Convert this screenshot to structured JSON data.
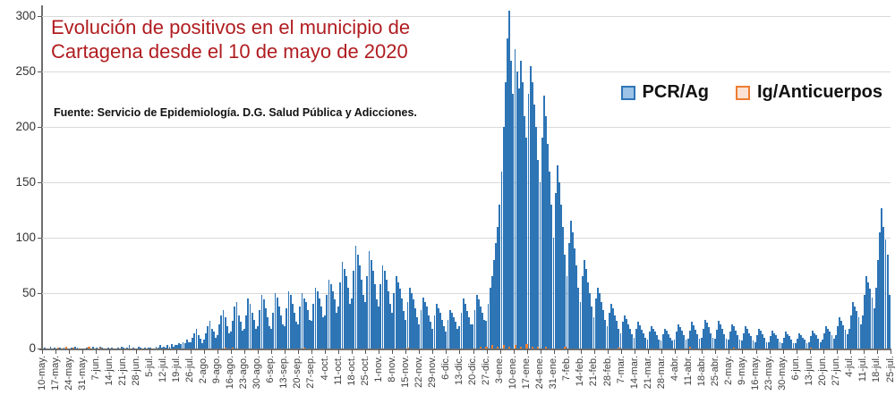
{
  "header": {
    "title": "Evolución de positivos en el municipio de Cartagena desde el 10 de mayo de 2020",
    "source": "Fuente: Servicio de Epidemiología. D.G. Salud Pública y Adicciones."
  },
  "legend": {
    "items": [
      {
        "label": "PCR/Ag",
        "fill": "#9DC3E6",
        "border": "#2E75B6"
      },
      {
        "label": "Ig/Anticuerpos",
        "fill": "#FBE2D5",
        "border": "#ED7D31"
      }
    ]
  },
  "colors": {
    "title": "#B01C20",
    "bar_blue": "#2E75B6",
    "bar_orange": "#ED7D31",
    "gridline": "#D9D9D9",
    "axis": "#6E6E6E",
    "tick_label": "#3F3F3F"
  },
  "chart_data": {
    "type": "bar",
    "title": "Evolución de positivos en el municipio de Cartagena desde el 10 de mayo de 2020",
    "xlabel": "",
    "ylabel": "",
    "ylim": [
      0,
      310
    ],
    "grid": true,
    "legend_position": "top-right",
    "y_ticks": [
      0,
      50,
      100,
      150,
      200,
      250,
      300
    ],
    "x_tick_labels": [
      "10-may.",
      "17-may.",
      "24-may.",
      "31-may.",
      "7-jun.",
      "14-jun.",
      "21-jun.",
      "28-jun.",
      "5-jul.",
      "12-jul.",
      "19-jul.",
      "26-jul.",
      "2-ago.",
      "9-ago.",
      "16-ago.",
      "23-ago.",
      "30-ago.",
      "6-sep.",
      "13-sep.",
      "20-sep.",
      "27-sep.",
      "4-oct.",
      "11-oct.",
      "18-oct.",
      "25-oct.",
      "1-nov.",
      "8-nov.",
      "15-nov.",
      "22-nov.",
      "29-nov.",
      "6-dic.",
      "13-dic.",
      "20-dic.",
      "27-dic.",
      "3-ene.",
      "10-ene.",
      "17-ene.",
      "24-ene.",
      "31-ene.",
      "7-feb.",
      "14-feb.",
      "21-feb.",
      "28-feb.",
      "7-mar.",
      "14-mar.",
      "21-mar.",
      "28-mar.",
      "4-abr.",
      "11-abr.",
      "18-abr.",
      "25-abr.",
      "2-may.",
      "9-may.",
      "16-may.",
      "23-may.",
      "30-may.",
      "6-jun.",
      "13-jun.",
      "20-jun.",
      "27-jun.",
      "4-jul.",
      "11-jul.",
      "18-jul.",
      "25-jul."
    ],
    "x_unit": "day",
    "n_days": 442,
    "series": [
      {
        "name": "PCR/Ag",
        "color": "#2E75B6",
        "values": [
          0,
          1,
          0,
          0,
          2,
          0,
          1,
          0,
          0,
          1,
          0,
          1,
          2,
          0,
          0,
          1,
          0,
          2,
          1,
          0,
          0,
          0,
          0,
          1,
          1,
          0,
          2,
          0,
          1,
          0,
          2,
          1,
          0,
          0,
          1,
          0,
          1,
          0,
          0,
          1,
          0,
          2,
          1,
          0,
          1,
          3,
          0,
          1,
          0,
          0,
          2,
          1,
          0,
          1,
          0,
          1,
          1,
          0,
          0,
          2,
          1,
          3,
          1,
          2,
          1,
          3,
          2,
          4,
          2,
          3,
          3,
          5,
          4,
          6,
          5,
          8,
          6,
          6,
          10,
          14,
          18,
          12,
          9,
          5,
          8,
          14,
          20,
          25,
          18,
          15,
          10,
          12,
          22,
          30,
          35,
          28,
          20,
          14,
          15,
          25,
          38,
          42,
          30,
          24,
          16,
          18,
          30,
          45,
          40,
          32,
          26,
          18,
          20,
          35,
          48,
          44,
          36,
          28,
          20,
          18,
          32,
          50,
          46,
          38,
          30,
          22,
          20,
          36,
          52,
          48,
          40,
          32,
          24,
          22,
          38,
          50,
          45,
          42,
          35,
          26,
          25,
          40,
          55,
          52,
          45,
          38,
          28,
          30,
          48,
          62,
          58,
          52,
          44,
          32,
          38,
          60,
          78,
          72,
          65,
          55,
          40,
          45,
          70,
          93,
          85,
          75,
          62,
          48,
          42,
          65,
          88,
          80,
          70,
          58,
          44,
          38,
          58,
          75,
          70,
          62,
          52,
          40,
          32,
          50,
          65,
          60,
          54,
          45,
          34,
          26,
          42,
          55,
          50,
          44,
          36,
          28,
          22,
          35,
          46,
          42,
          38,
          30,
          24,
          18,
          30,
          40,
          36,
          32,
          26,
          20,
          15,
          26,
          35,
          32,
          28,
          24,
          18,
          20,
          32,
          45,
          40,
          34,
          28,
          22,
          22,
          35,
          48,
          44,
          38,
          32,
          26,
          25,
          40,
          55,
          65,
          80,
          95,
          110,
          130,
          160,
          200,
          240,
          280,
          305,
          260,
          230,
          270,
          250,
          235,
          260,
          240,
          210,
          190,
          230,
          255,
          240,
          220,
          200,
          170,
          150,
          190,
          228,
          210,
          185,
          160,
          130,
          100,
          140,
          165,
          150,
          130,
          110,
          85,
          65,
          95,
          115,
          105,
          90,
          75,
          55,
          42,
          65,
          80,
          72,
          60,
          50,
          38,
          28,
          45,
          55,
          50,
          42,
          35,
          26,
          20,
          32,
          40,
          36,
          30,
          25,
          18,
          14,
          24,
          30,
          27,
          22,
          18,
          13,
          10,
          18,
          24,
          21,
          17,
          14,
          10,
          8,
          15,
          20,
          18,
          15,
          12,
          8,
          7,
          13,
          18,
          16,
          13,
          10,
          7,
          8,
          15,
          22,
          19,
          16,
          12,
          8,
          9,
          16,
          24,
          21,
          17,
          13,
          9,
          10,
          18,
          26,
          23,
          19,
          14,
          10,
          9,
          17,
          25,
          22,
          18,
          13,
          9,
          8,
          15,
          22,
          20,
          16,
          12,
          8,
          7,
          14,
          20,
          18,
          14,
          11,
          7,
          6,
          12,
          18,
          16,
          13,
          10,
          6,
          6,
          11,
          16,
          14,
          12,
          9,
          6,
          5,
          10,
          15,
          13,
          11,
          8,
          5,
          5,
          9,
          14,
          12,
          10,
          8,
          5,
          6,
          11,
          16,
          14,
          12,
          9,
          6,
          8,
          14,
          20,
          18,
          15,
          12,
          9,
          12,
          20,
          28,
          25,
          21,
          17,
          13,
          18,
          30,
          42,
          38,
          34,
          28,
          22,
          30,
          48,
          65,
          60,
          54,
          46,
          36,
          55,
          80,
          105,
          127,
          110,
          98,
          85,
          48
        ]
      },
      {
        "name": "Ig/Anticuerpos",
        "color": "#ED7D31",
        "points": [
          [
            8,
            1
          ],
          [
            12,
            2
          ],
          [
            16,
            1
          ],
          [
            24,
            2
          ],
          [
            30,
            1
          ],
          [
            95,
            1
          ],
          [
            99,
            1
          ],
          [
            136,
            1
          ],
          [
            190,
            1
          ],
          [
            228,
            2
          ],
          [
            231,
            2
          ],
          [
            234,
            3
          ],
          [
            237,
            2
          ],
          [
            240,
            3
          ],
          [
            243,
            2
          ],
          [
            246,
            3
          ],
          [
            249,
            2
          ],
          [
            252,
            4
          ],
          [
            255,
            2
          ],
          [
            258,
            2
          ],
          [
            262,
            2
          ],
          [
            272,
            2
          ],
          [
            300,
            1
          ],
          [
            337,
            2
          ],
          [
            360,
            1
          ],
          [
            400,
            1
          ]
        ]
      }
    ]
  }
}
